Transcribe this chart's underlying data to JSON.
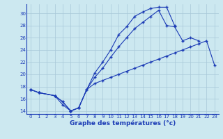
{
  "title": "Graphe des températures (°c)",
  "background_color": "#cce8f0",
  "line_color": "#1a3ab5",
  "grid_color": "#a8c8d8",
  "xlim": [
    -0.5,
    23.5
  ],
  "ylim": [
    13.5,
    31.5
  ],
  "yticks": [
    14,
    16,
    18,
    20,
    22,
    24,
    26,
    28,
    30
  ],
  "xticks": [
    0,
    1,
    2,
    3,
    4,
    5,
    6,
    7,
    8,
    9,
    10,
    11,
    12,
    13,
    14,
    15,
    16,
    17,
    18,
    19,
    20,
    21,
    22,
    23
  ],
  "line1_x": [
    0,
    1,
    3,
    4,
    5,
    6,
    7,
    8,
    9,
    10,
    11,
    12,
    13,
    14,
    15,
    16,
    17,
    18,
    19,
    20,
    21,
    22,
    23
  ],
  "line1_y": [
    17.5,
    17.0,
    16.5,
    15.5,
    14.0,
    14.5,
    17.5,
    20.2,
    22.0,
    24.0,
    26.5,
    27.8,
    29.5,
    30.2,
    30.8,
    31.0,
    31.0,
    28.0,
    null,
    null,
    null,
    null,
    null
  ],
  "line2_x": [
    0,
    1,
    3,
    4,
    5,
    6,
    7,
    8,
    9,
    10,
    11,
    12,
    13,
    14,
    15,
    16,
    17,
    18,
    19,
    20,
    21,
    22,
    23
  ],
  "line2_y": [
    17.5,
    17.0,
    16.5,
    15.5,
    14.0,
    14.5,
    17.5,
    19.5,
    21.0,
    22.8,
    24.5,
    26.0,
    27.5,
    28.5,
    29.5,
    30.5,
    28.0,
    27.8,
    25.5,
    26.0,
    25.5,
    null,
    null
  ],
  "line3_x": [
    0,
    1,
    3,
    4,
    5,
    6,
    7,
    8,
    9,
    10,
    11,
    12,
    13,
    14,
    15,
    16,
    17,
    18,
    19,
    20,
    21,
    22,
    23
  ],
  "line3_y": [
    17.5,
    17.0,
    16.5,
    15.0,
    14.0,
    14.5,
    17.5,
    18.5,
    19.0,
    19.5,
    20.0,
    20.5,
    21.0,
    21.5,
    22.0,
    22.5,
    23.0,
    23.5,
    24.0,
    24.5,
    25.0,
    25.5,
    21.5
  ]
}
